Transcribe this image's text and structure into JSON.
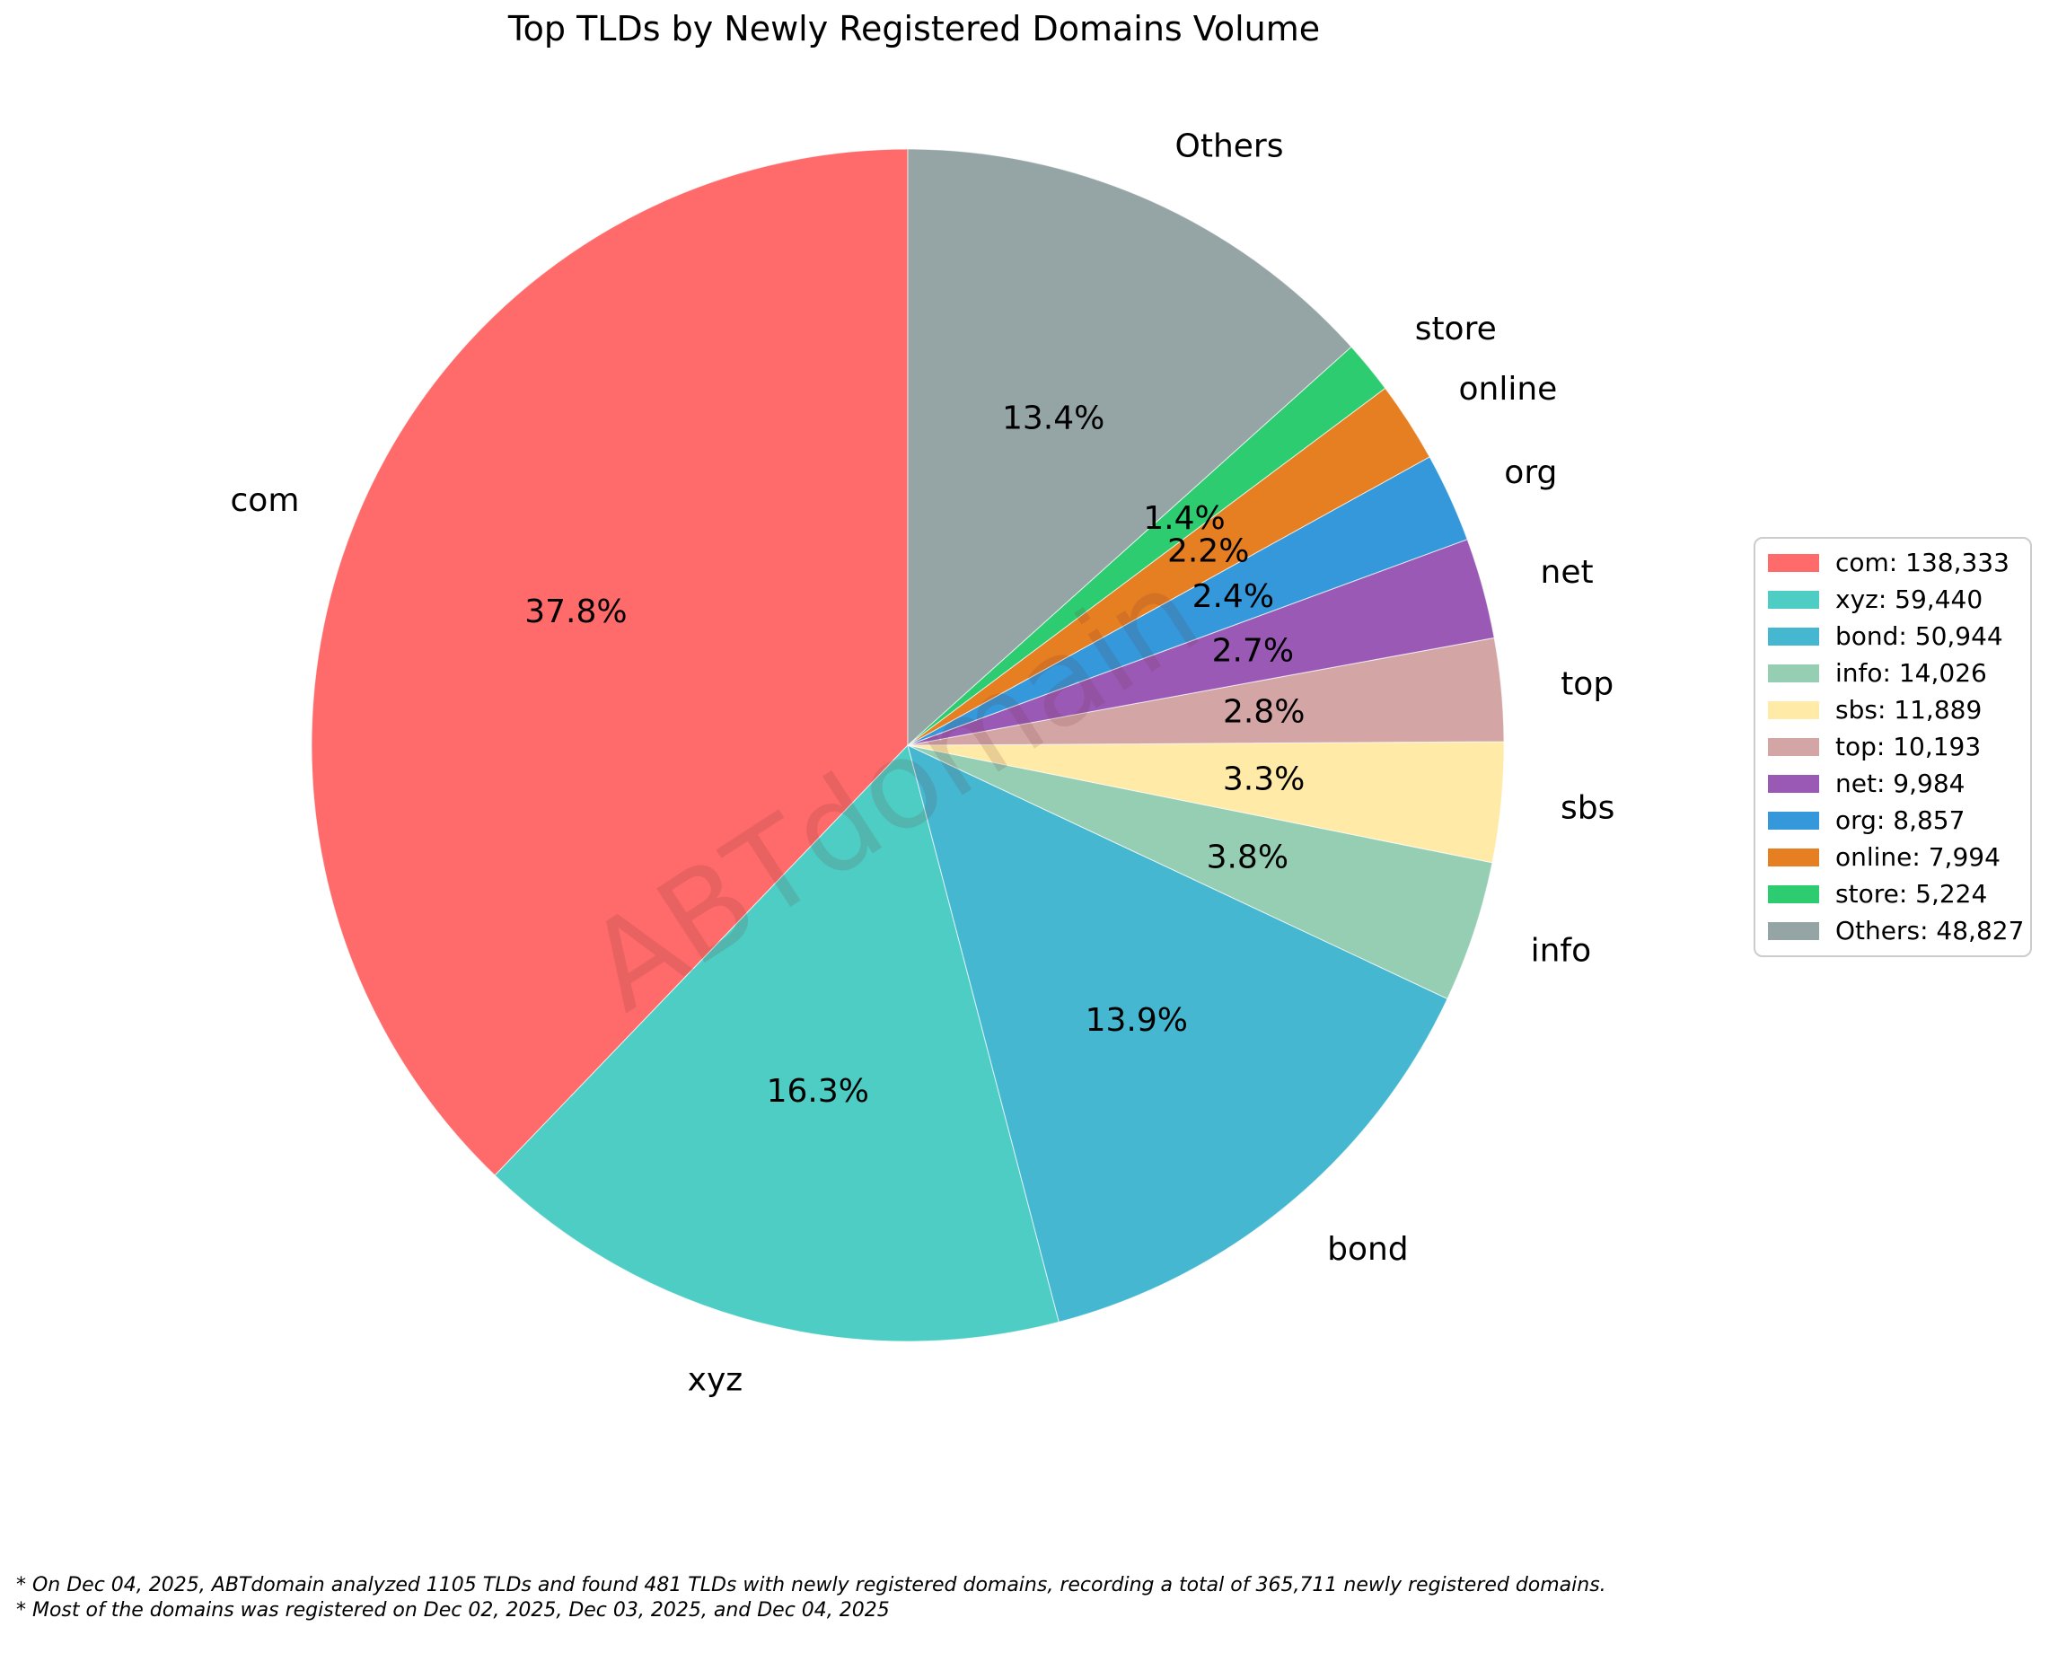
{
  "title": "Top TLDs by Newly Registered Domains Volume",
  "watermark": {
    "text": "ABTdomain",
    "color": "#6b3434",
    "opacity": 0.15
  },
  "footnotes": {
    "line1": "* On Dec 04, 2025, ABTdomain analyzed 1105 TLDs and found 481 TLDs with newly registered domains, recording a total of 365,711 newly registered domains.",
    "line2": "* Most of the domains was registered on Dec 02, 2025, Dec 03, 2025, and Dec 04, 2025"
  },
  "chart_data": {
    "type": "pie",
    "title": "Top TLDs by Newly Registered Domains Volume",
    "total": 365711,
    "start_angle_deg": 90,
    "counterclockwise": true,
    "legend_position": "right",
    "label_distance": 1.1,
    "pct_distance": 0.6,
    "series": [
      {
        "label": "com",
        "value": 138333,
        "value_text": "138,333",
        "pct_label": "37.8%",
        "color": "#FF6B6B"
      },
      {
        "label": "xyz",
        "value": 59440,
        "value_text": "59,440",
        "pct_label": "16.3%",
        "color": "#4ECDC4"
      },
      {
        "label": "bond",
        "value": 50944,
        "value_text": "50,944",
        "pct_label": "13.9%",
        "color": "#45B7D1"
      },
      {
        "label": "info",
        "value": 14026,
        "value_text": "14,026",
        "pct_label": "3.8%",
        "color": "#96CEB4"
      },
      {
        "label": "sbs",
        "value": 11889,
        "value_text": "11,889",
        "pct_label": "3.3%",
        "color": "#FFEAA7"
      },
      {
        "label": "top",
        "value": 10193,
        "value_text": "10,193",
        "pct_label": "2.8%",
        "color": "#D4A5A5"
      },
      {
        "label": "net",
        "value": 9984,
        "value_text": "9,984",
        "pct_label": "2.7%",
        "color": "#9B59B6"
      },
      {
        "label": "org",
        "value": 8857,
        "value_text": "8,857",
        "pct_label": "2.4%",
        "color": "#3498DB"
      },
      {
        "label": "online",
        "value": 7994,
        "value_text": "7,994",
        "pct_label": "2.2%",
        "color": "#E67E22"
      },
      {
        "label": "store",
        "value": 5224,
        "value_text": "5,224",
        "pct_label": "1.4%",
        "color": "#2ECC71"
      },
      {
        "label": "Others",
        "value": 48827,
        "value_text": "48,827",
        "pct_label": "13.4%",
        "color": "#95A5A6"
      }
    ]
  }
}
